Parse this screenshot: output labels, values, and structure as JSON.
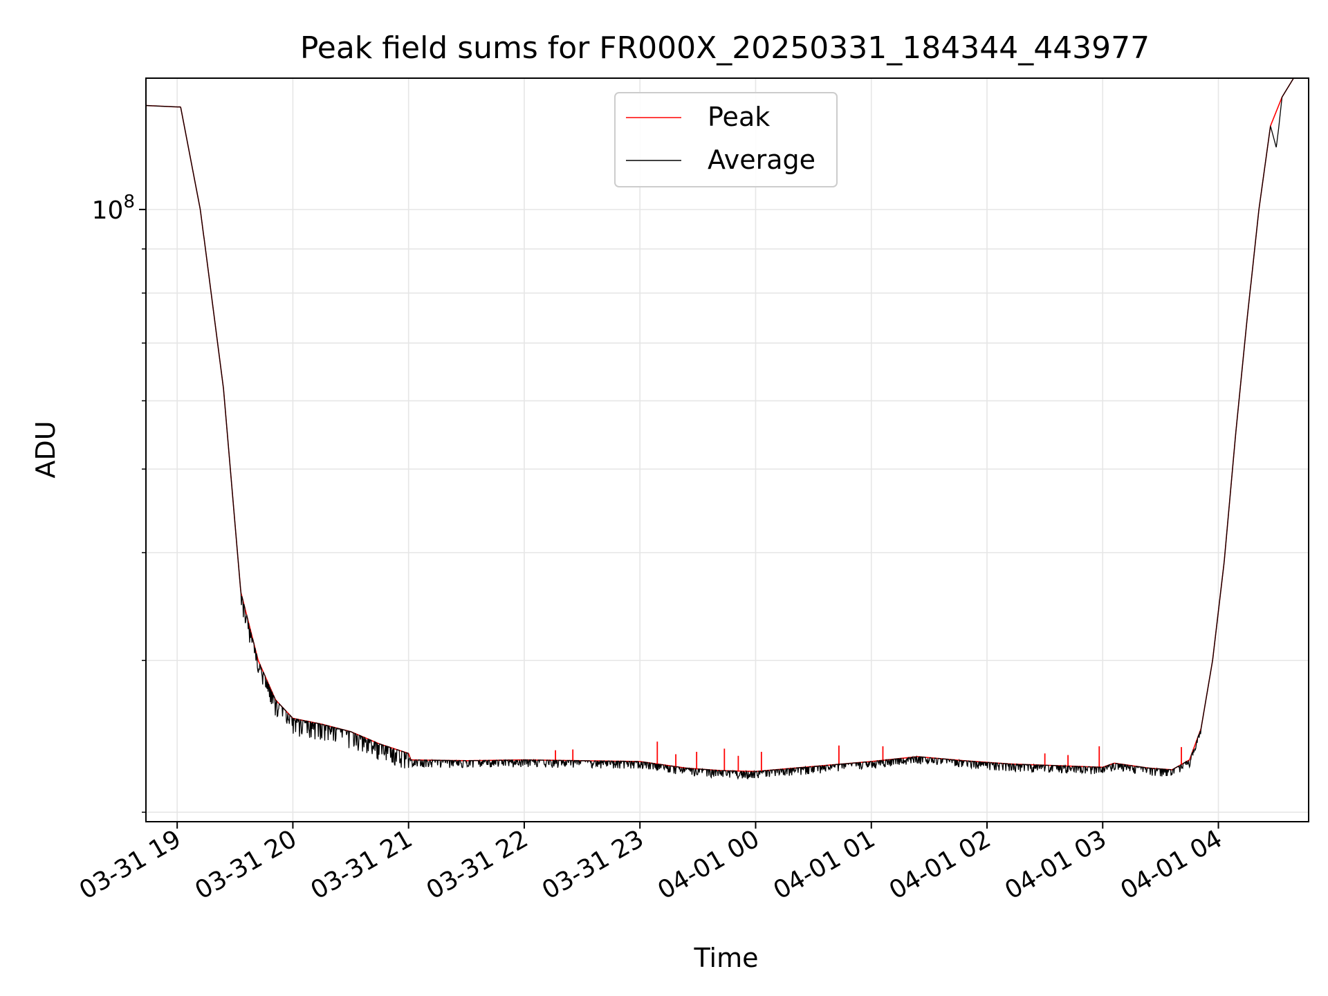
{
  "chart_data": {
    "type": "line",
    "title": "Peak field sums for FR000X_20250331_184344_443977",
    "xlabel": "Time",
    "ylabel": "ADU",
    "yscale": "log",
    "ylim": [
      19500000,
      142000000
    ],
    "xlim": [
      18.73,
      28.78
    ],
    "x_unit": "hours since 2025-03-31 00:00",
    "grid": true,
    "legend_position": "upper-center",
    "x_ticks": [
      {
        "value": 19,
        "label": "03-31 19"
      },
      {
        "value": 20,
        "label": "03-31 20"
      },
      {
        "value": 21,
        "label": "03-31 21"
      },
      {
        "value": 22,
        "label": "03-31 22"
      },
      {
        "value": 23,
        "label": "03-31 23"
      },
      {
        "value": 24,
        "label": "04-01 00"
      },
      {
        "value": 25,
        "label": "04-01 01"
      },
      {
        "value": 26,
        "label": "04-01 02"
      },
      {
        "value": 27,
        "label": "04-01 03"
      },
      {
        "value": 28,
        "label": "04-01 04"
      }
    ],
    "y_major_ticks": [
      {
        "value": 100000000,
        "label_base": "10",
        "label_exp": "8"
      }
    ],
    "y_minor_ticks": [
      20000000,
      30000000,
      40000000,
      50000000,
      60000000,
      70000000,
      80000000,
      90000000
    ],
    "series": [
      {
        "name": "Peak",
        "color": "#ff0000",
        "x": [
          18.73,
          19.0,
          19.03,
          19.2,
          19.4,
          19.55,
          19.7,
          19.85,
          20.0,
          20.25,
          20.5,
          20.75,
          21.0,
          21.02,
          21.5,
          22.0,
          22.5,
          23.0,
          23.4,
          23.7,
          24.0,
          24.5,
          25.0,
          25.4,
          25.8,
          26.2,
          26.6,
          27.0,
          27.1,
          27.4,
          27.6,
          27.75,
          27.85,
          27.95,
          28.05,
          28.15,
          28.25,
          28.35,
          28.45,
          28.55,
          28.65,
          28.78
        ],
        "values": [
          132000000,
          131500000,
          131500000,
          100000000,
          62000000,
          36000000,
          30000000,
          27000000,
          25700000,
          25300000,
          24800000,
          24000000,
          23400000,
          23000000,
          22950000,
          23000000,
          22950000,
          22900000,
          22500000,
          22350000,
          22300000,
          22600000,
          22900000,
          23200000,
          22950000,
          22750000,
          22650000,
          22550000,
          22800000,
          22500000,
          22400000,
          23000000,
          25000000,
          30000000,
          39000000,
          55000000,
          75000000,
          100000000,
          125000000,
          135000000,
          142000000,
          142000000
        ],
        "spikes": [
          {
            "x": 22.27,
            "value": 23600000
          },
          {
            "x": 22.42,
            "value": 23650000
          },
          {
            "x": 23.15,
            "value": 24150000
          },
          {
            "x": 23.31,
            "value": 23350000
          },
          {
            "x": 23.49,
            "value": 23500000
          },
          {
            "x": 23.73,
            "value": 23700000
          },
          {
            "x": 23.85,
            "value": 23250000
          },
          {
            "x": 24.05,
            "value": 23500000
          },
          {
            "x": 24.72,
            "value": 23900000
          },
          {
            "x": 25.1,
            "value": 23850000
          },
          {
            "x": 26.5,
            "value": 23400000
          },
          {
            "x": 26.7,
            "value": 23300000
          },
          {
            "x": 26.97,
            "value": 23850000
          },
          {
            "x": 27.68,
            "value": 23800000
          }
        ]
      },
      {
        "name": "Average",
        "color": "#000000",
        "x": [
          18.73,
          19.0,
          19.03,
          19.2,
          19.4,
          19.55,
          19.7,
          19.85,
          20.0,
          20.25,
          20.5,
          20.75,
          21.0,
          21.02,
          21.5,
          22.0,
          22.5,
          23.0,
          23.4,
          23.7,
          24.0,
          24.5,
          25.0,
          25.4,
          25.8,
          26.2,
          26.6,
          27.0,
          27.1,
          27.4,
          27.6,
          27.75,
          27.85,
          27.95,
          28.05,
          28.15,
          28.25,
          28.35,
          28.45,
          28.5,
          28.52,
          28.55,
          28.65,
          28.78
        ],
        "values": [
          132000000,
          131500000,
          131500000,
          100000000,
          62000000,
          36000000,
          30000000,
          27000000,
          25700000,
          25300000,
          24800000,
          24000000,
          23400000,
          23000000,
          22950000,
          23000000,
          22950000,
          22900000,
          22500000,
          22350000,
          22300000,
          22600000,
          22900000,
          23200000,
          22950000,
          22750000,
          22650000,
          22550000,
          22800000,
          22500000,
          22400000,
          23000000,
          25000000,
          30000000,
          39000000,
          55000000,
          75000000,
          100000000,
          125000000,
          118000000,
          124000000,
          135000000,
          142000000,
          142000000
        ]
      }
    ]
  }
}
